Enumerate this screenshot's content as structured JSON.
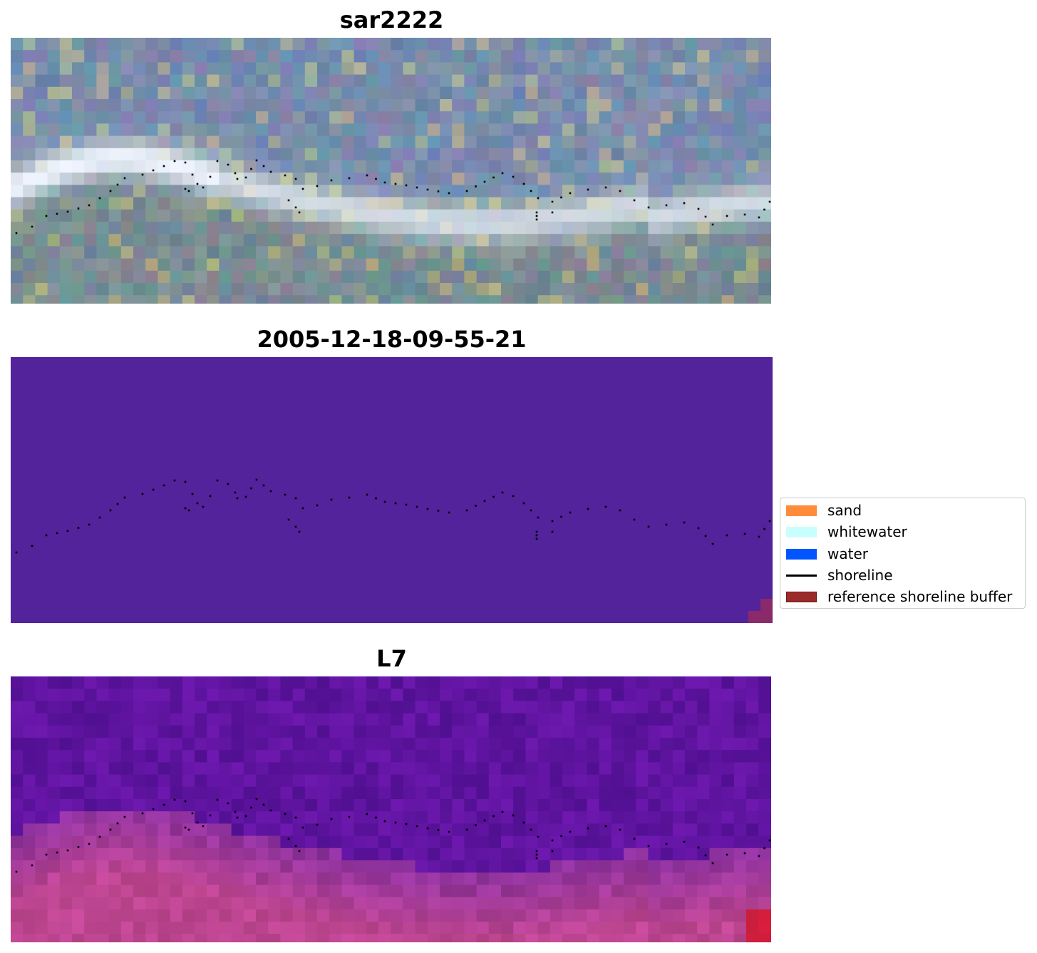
{
  "panels": {
    "rgb": {
      "title": "sar2222"
    },
    "classification": {
      "title": "2005-12-18-09-55-21"
    },
    "index": {
      "title": "L7"
    }
  },
  "legend": {
    "items": [
      {
        "label": "sand",
        "color": "#ff8c3a",
        "kind": "patch"
      },
      {
        "label": "whitewater",
        "color": "#c8fffe",
        "kind": "patch"
      },
      {
        "label": "water",
        "color": "#0055ff",
        "kind": "patch"
      },
      {
        "label": "shoreline",
        "color": "#000000",
        "kind": "line"
      },
      {
        "label": "reference shoreline buffer",
        "color": "#9b2b2b",
        "kind": "patch-edged"
      }
    ]
  },
  "colors": {
    "classification_background": "#52239a",
    "buffer_overlay": "#8a2a6a",
    "shoreline_points": "#000000"
  }
}
